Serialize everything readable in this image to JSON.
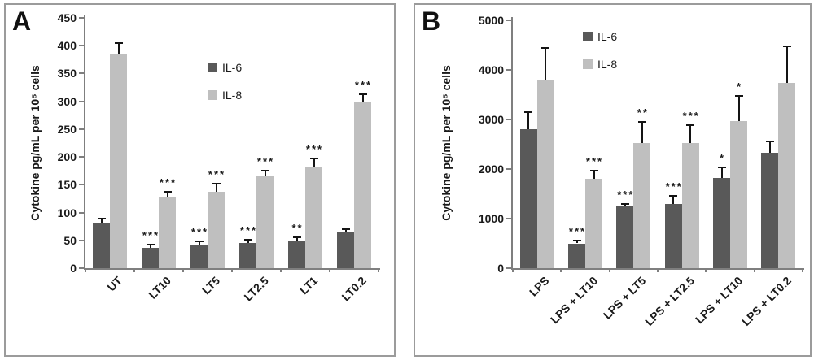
{
  "figure": {
    "background": "#ffffff",
    "axis_color": "#7f7f7f",
    "error_bar_color": "#141414",
    "bar_colors": {
      "il6": "#595959",
      "il8": "#bfbfbf"
    },
    "panel_a_letter": "A",
    "panel_b_letter": "B"
  },
  "chart_data": [
    {
      "type": "bar",
      "panel_label": "A",
      "title": "",
      "ylabel": "Cytokine pg/mL per 10⁵ cells",
      "xlabel": "",
      "ylim": [
        0,
        450
      ],
      "yticks": [
        0,
        50,
        100,
        150,
        200,
        250,
        300,
        350,
        400,
        450
      ],
      "grid": false,
      "legend_position": "upper-center-inside",
      "categories": [
        "UT",
        "LT10",
        "LT5",
        "LT2.5",
        "LT1",
        "LT0.2"
      ],
      "legend": [
        "IL-6",
        "IL-8"
      ],
      "series": [
        {
          "name": "IL-6",
          "color_key": "il6",
          "values": [
            80,
            36,
            42,
            45,
            50,
            64
          ],
          "error_top": [
            89,
            43,
            48,
            51,
            56,
            70
          ],
          "sig": [
            "",
            "***",
            "***",
            "***",
            "**",
            ""
          ]
        },
        {
          "name": "IL-8",
          "color_key": "il8",
          "values": [
            385,
            128,
            137,
            165,
            183,
            300
          ],
          "error_top": [
            404,
            137,
            152,
            176,
            197,
            312
          ],
          "sig": [
            "",
            "***",
            "***",
            "***",
            "***",
            "***"
          ]
        }
      ]
    },
    {
      "type": "bar",
      "panel_label": "B",
      "title": "",
      "ylabel": "Cytokine pg/mL per 10⁵ cells",
      "xlabel": "",
      "ylim": [
        0,
        5000
      ],
      "yticks": [
        0,
        1000,
        2000,
        3000,
        4000,
        5000
      ],
      "grid": false,
      "legend_position": "upper-center-inside",
      "categories": [
        "LPS",
        "LPS + LT10",
        "LPS + LT5",
        "LPS + LT2.5",
        "LPS + LT10",
        "LPS + LT0.2"
      ],
      "legend": [
        "IL-6",
        "IL-8"
      ],
      "series": [
        {
          "name": "IL-6",
          "color_key": "il6",
          "values": [
            2800,
            500,
            1270,
            1300,
            1820,
            2320
          ],
          "error_top": [
            3150,
            560,
            1300,
            1460,
            2030,
            2550
          ],
          "sig": [
            "",
            "***",
            "***",
            "***",
            "*",
            ""
          ]
        },
        {
          "name": "IL-8",
          "color_key": "il8",
          "values": [
            3800,
            1800,
            2530,
            2530,
            2970,
            3730
          ],
          "error_top": [
            4450,
            1970,
            2950,
            2880,
            3480,
            4480
          ],
          "sig": [
            "",
            "***",
            "**",
            "***",
            "*",
            ""
          ]
        }
      ]
    }
  ]
}
